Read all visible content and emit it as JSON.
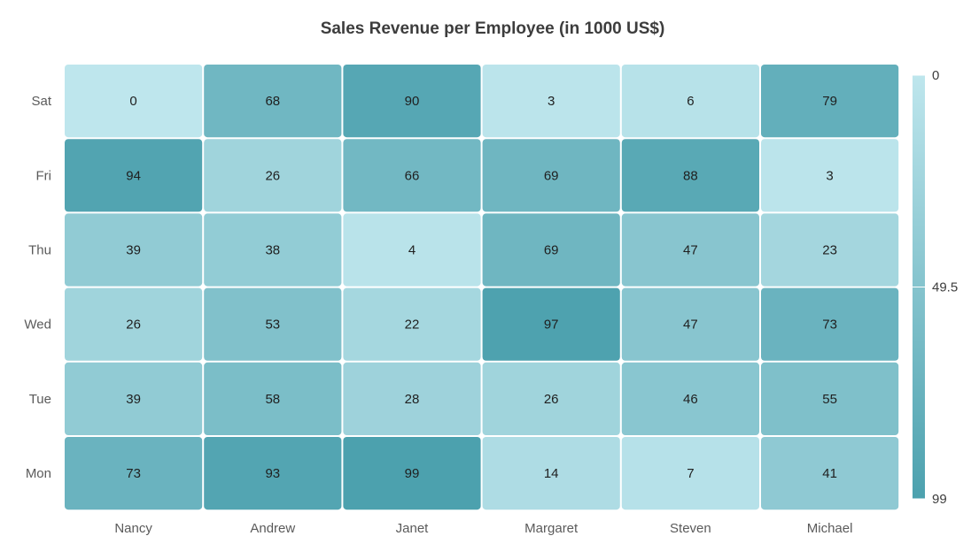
{
  "chart_data": {
    "type": "heatmap",
    "title": "Sales Revenue per Employee (in 1000 US$)",
    "x_categories": [
      "Nancy",
      "Andrew",
      "Janet",
      "Margaret",
      "Steven",
      "Michael"
    ],
    "y_categories": [
      "Sat",
      "Fri",
      "Thu",
      "Wed",
      "Tue",
      "Mon"
    ],
    "values": [
      [
        0,
        68,
        90,
        3,
        6,
        79
      ],
      [
        94,
        26,
        66,
        69,
        88,
        3
      ],
      [
        39,
        38,
        4,
        69,
        47,
        23
      ],
      [
        26,
        53,
        22,
        97,
        47,
        73
      ],
      [
        39,
        58,
        28,
        26,
        46,
        55
      ],
      [
        73,
        93,
        99,
        14,
        7,
        41
      ]
    ],
    "value_range": [
      0,
      99
    ],
    "color_low": "#bee6ed",
    "color_high": "#4ca1ae",
    "legend": {
      "position": "right",
      "labels": [
        "0",
        "49.5",
        "99"
      ],
      "tick_values": [
        0,
        49.5,
        99
      ]
    }
  }
}
